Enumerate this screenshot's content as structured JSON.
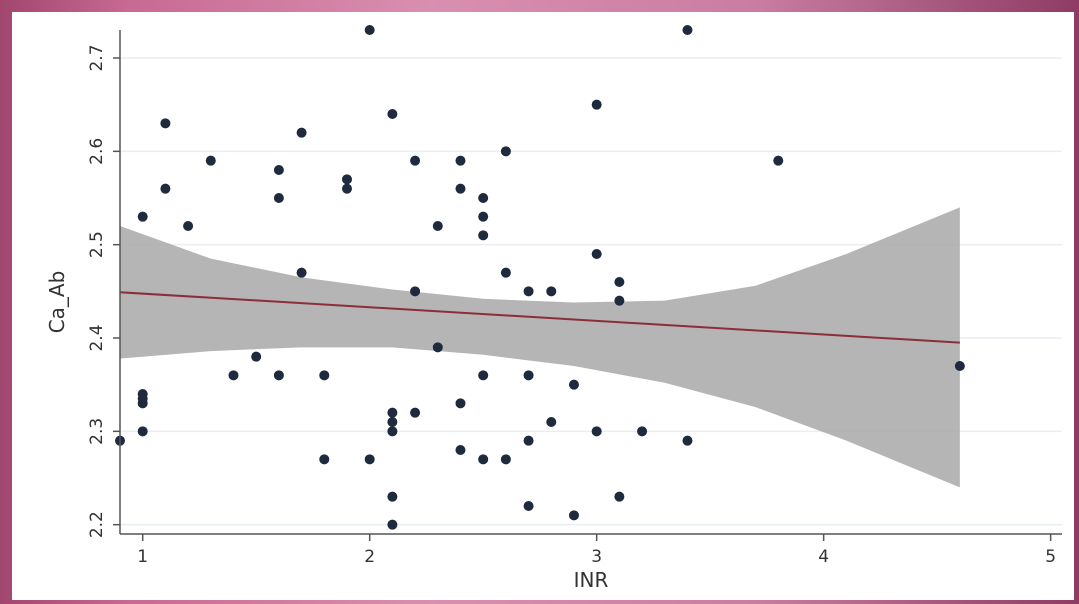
{
  "chart_data": {
    "type": "scatter",
    "title": "",
    "xlabel": "INR",
    "ylabel": "Ca_Ab",
    "xlim": [
      0.9,
      5.05
    ],
    "ylim": [
      2.19,
      2.73
    ],
    "xticks": [
      1,
      2,
      3,
      4,
      5
    ],
    "yticks": [
      2.2,
      2.3,
      2.4,
      2.5,
      2.6,
      2.7
    ],
    "ytick_labels": [
      "2.2",
      "2.3",
      "2.4",
      "2.5",
      "2.6",
      "2.7"
    ],
    "xtick_labels": [
      "1",
      "2",
      "3",
      "4",
      "5"
    ],
    "grid": true,
    "points": [
      {
        "x": 2.0,
        "y": 2.73
      },
      {
        "x": 3.4,
        "y": 2.73
      },
      {
        "x": 1.1,
        "y": 2.63
      },
      {
        "x": 2.1,
        "y": 2.64
      },
      {
        "x": 3.0,
        "y": 2.65
      },
      {
        "x": 1.7,
        "y": 2.62
      },
      {
        "x": 2.6,
        "y": 2.6
      },
      {
        "x": 1.3,
        "y": 2.59
      },
      {
        "x": 1.6,
        "y": 2.58
      },
      {
        "x": 2.2,
        "y": 2.59
      },
      {
        "x": 2.4,
        "y": 2.59
      },
      {
        "x": 3.8,
        "y": 2.59
      },
      {
        "x": 1.9,
        "y": 2.57
      },
      {
        "x": 1.9,
        "y": 2.56
      },
      {
        "x": 1.1,
        "y": 2.56
      },
      {
        "x": 2.4,
        "y": 2.56
      },
      {
        "x": 1.6,
        "y": 2.55
      },
      {
        "x": 2.5,
        "y": 2.55
      },
      {
        "x": 1.0,
        "y": 2.53
      },
      {
        "x": 2.5,
        "y": 2.53
      },
      {
        "x": 1.2,
        "y": 2.52
      },
      {
        "x": 2.3,
        "y": 2.52
      },
      {
        "x": 2.5,
        "y": 2.51
      },
      {
        "x": 3.0,
        "y": 2.49
      },
      {
        "x": 1.7,
        "y": 2.47
      },
      {
        "x": 2.6,
        "y": 2.47
      },
      {
        "x": 3.1,
        "y": 2.46
      },
      {
        "x": 2.7,
        "y": 2.45
      },
      {
        "x": 2.8,
        "y": 2.45
      },
      {
        "x": 2.2,
        "y": 2.45
      },
      {
        "x": 3.1,
        "y": 2.44
      },
      {
        "x": 2.3,
        "y": 2.39
      },
      {
        "x": 1.5,
        "y": 2.38
      },
      {
        "x": 4.6,
        "y": 2.37
      },
      {
        "x": 1.4,
        "y": 2.36
      },
      {
        "x": 1.6,
        "y": 2.36
      },
      {
        "x": 1.8,
        "y": 2.36
      },
      {
        "x": 2.5,
        "y": 2.36
      },
      {
        "x": 2.7,
        "y": 2.36
      },
      {
        "x": 2.9,
        "y": 2.35
      },
      {
        "x": 1.0,
        "y": 2.34
      },
      {
        "x": 1.0,
        "y": 2.335
      },
      {
        "x": 1.0,
        "y": 2.33
      },
      {
        "x": 2.4,
        "y": 2.33
      },
      {
        "x": 2.1,
        "y": 2.32
      },
      {
        "x": 2.2,
        "y": 2.32
      },
      {
        "x": 2.1,
        "y": 2.31
      },
      {
        "x": 2.8,
        "y": 2.31
      },
      {
        "x": 1.0,
        "y": 2.3
      },
      {
        "x": 2.1,
        "y": 2.3
      },
      {
        "x": 3.0,
        "y": 2.3
      },
      {
        "x": 3.2,
        "y": 2.3
      },
      {
        "x": 0.9,
        "y": 2.29
      },
      {
        "x": 2.7,
        "y": 2.29
      },
      {
        "x": 3.4,
        "y": 2.29
      },
      {
        "x": 2.4,
        "y": 2.28
      },
      {
        "x": 1.8,
        "y": 2.27
      },
      {
        "x": 2.0,
        "y": 2.27
      },
      {
        "x": 2.5,
        "y": 2.27
      },
      {
        "x": 2.6,
        "y": 2.27
      },
      {
        "x": 2.1,
        "y": 2.23
      },
      {
        "x": 3.1,
        "y": 2.23
      },
      {
        "x": 2.7,
        "y": 2.22
      },
      {
        "x": 2.9,
        "y": 2.21
      },
      {
        "x": 2.1,
        "y": 2.2
      }
    ],
    "fit_line": {
      "x": [
        0.9,
        4.6
      ],
      "y": [
        2.449,
        2.395
      ],
      "color": "#8b2e3a"
    },
    "ci_band": {
      "x": [
        0.9,
        1.3,
        1.7,
        2.1,
        2.5,
        2.9,
        3.3,
        3.7,
        4.1,
        4.6
      ],
      "upper": [
        2.52,
        2.485,
        2.465,
        2.452,
        2.442,
        2.438,
        2.44,
        2.456,
        2.49,
        2.54
      ],
      "lower": [
        2.378,
        2.386,
        2.39,
        2.39,
        2.382,
        2.37,
        2.352,
        2.326,
        2.29,
        2.24
      ],
      "color": "#a8a8a8"
    },
    "colors": {
      "point": "#1e2a3e",
      "grid": "#e9eef3",
      "axis": "#555555"
    }
  }
}
